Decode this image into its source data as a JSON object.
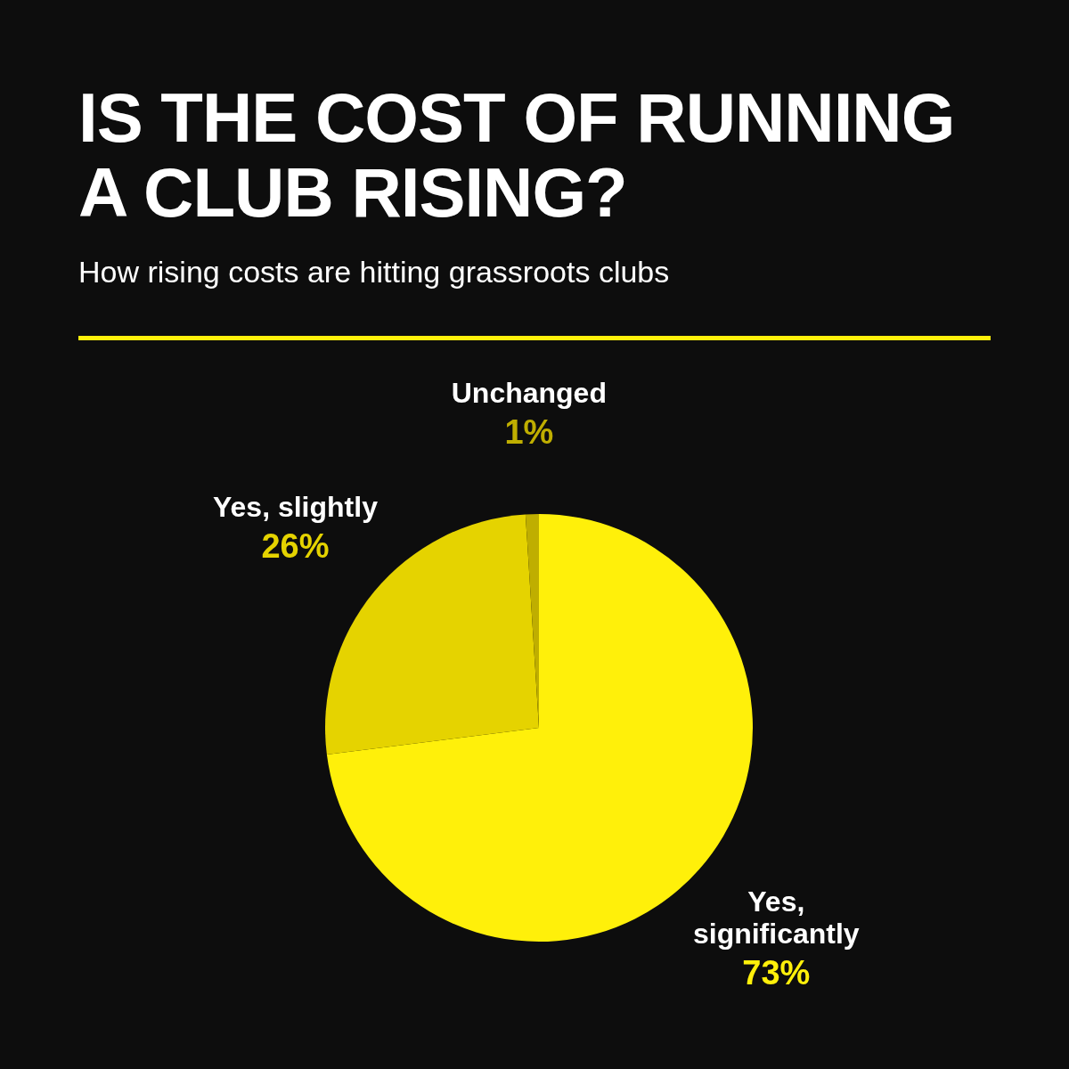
{
  "chart_data": {
    "type": "pie",
    "title": "IS THE COST OF RUNNING A CLUB RISING?",
    "subtitle": "How rising costs are hitting grassroots clubs",
    "categories": [
      "Yes, significantly",
      "Yes, slightly",
      "Unchanged"
    ],
    "values": [
      73,
      26,
      1
    ],
    "value_labels": [
      "73%",
      "26%",
      "1%"
    ],
    "colors": [
      "#fff00a",
      "#e5d300",
      "#bfae00"
    ],
    "legend": false
  }
}
